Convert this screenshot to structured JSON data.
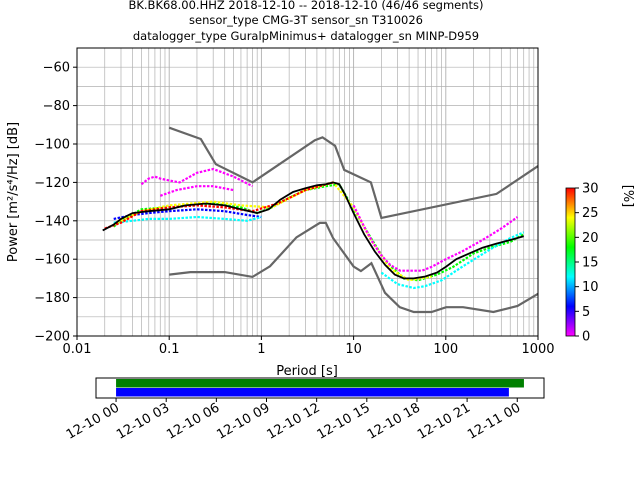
{
  "header": {
    "title_line1": "BK.BK68.00.HHZ   2018-12-10 -- 2018-12-10  (46/46 segments)",
    "title_line2": "sensor_type CMG-3T sensor_sn T310026",
    "title_line3": "datalogger_type GuralpMinimus+ datalogger_sn MINP-D959"
  },
  "chart_data": [
    {
      "type": "heatmap",
      "xlabel": "Period [s]",
      "ylabel": "Power [m²/s⁴/Hz] [dB]",
      "x_scale": "log",
      "xlim": [
        0.01,
        1000
      ],
      "ylim": [
        -200,
        -50
      ],
      "x_ticks": [
        "0.01",
        "0.1",
        "1",
        "10",
        "100",
        "1000"
      ],
      "y_ticks": [
        "-60",
        "-80",
        "-100",
        "-120",
        "-140",
        "-160",
        "-180",
        "-200"
      ],
      "grid": true,
      "colorbar": {
        "label": "[%]",
        "range": [
          0,
          30
        ],
        "ticks": [
          "0",
          "5",
          "10",
          "15",
          "20",
          "25",
          "30"
        ],
        "colormap": [
          "#ff00ff",
          "#0000ff",
          "#00ffff",
          "#00ff00",
          "#ffff00",
          "#ff0000"
        ]
      },
      "model_color": "#666666",
      "mode_color": "#000000",
      "high_noise_model": {
        "x": [
          0.1,
          0.22,
          0.32,
          0.8,
          3.8,
          4.6,
          6.3,
          7.9,
          15.4,
          20,
          354.8,
          1000
        ],
        "y": [
          -91.5,
          -97.4,
          -110.5,
          -120,
          -98,
          -96.5,
          -101,
          -113.5,
          -120,
          -138.5,
          -126,
          -111.5
        ]
      },
      "low_noise_model": {
        "x": [
          0.1,
          0.17,
          0.4,
          0.8,
          1.24,
          2.4,
          4.3,
          5,
          6,
          10,
          12,
          15.6,
          21.9,
          31.6,
          45,
          70,
          101,
          154,
          328,
          600,
          1000
        ],
        "y": [
          -168,
          -166.7,
          -166.7,
          -169.2,
          -163.7,
          -148.6,
          -141.1,
          -141.1,
          -149,
          -163.8,
          -166.2,
          -162.1,
          -177.5,
          -185,
          -187.5,
          -187.5,
          -185,
          -185,
          -187.5,
          -184.4,
          -178
        ]
      },
      "mode_curve": {
        "x": [
          0.019,
          0.025,
          0.03,
          0.04,
          0.06,
          0.1,
          0.15,
          0.25,
          0.4,
          0.6,
          0.9,
          1.2,
          1.6,
          2.2,
          3,
          4,
          5,
          6,
          7,
          8,
          10,
          13,
          17,
          22,
          28,
          35,
          45,
          60,
          80,
          100,
          130,
          180,
          250,
          350,
          500,
          700
        ],
        "y": [
          -145,
          -142,
          -139,
          -136,
          -135,
          -134,
          -132,
          -131,
          -132,
          -134,
          -136,
          -134,
          -129,
          -125,
          -123,
          -121.5,
          -121,
          -120,
          -121,
          -126,
          -136,
          -147,
          -156,
          -163,
          -168,
          -170,
          -170,
          -169,
          -167,
          -164,
          -160,
          -157,
          -154,
          -152,
          -150,
          -148
        ]
      },
      "psd_band_curves": [
        {
          "color": "#ff00ff",
          "x": [
            0.05,
            0.06,
            0.07,
            0.08,
            0.1,
            0.13,
            0.2,
            0.3,
            0.5,
            0.8
          ],
          "y": [
            -121,
            -118,
            -117,
            -118,
            -119,
            -120,
            -115,
            -113,
            -117,
            -122
          ]
        },
        {
          "color": "#ff00ff",
          "x": [
            0.08,
            0.12,
            0.2,
            0.3,
            0.5
          ],
          "y": [
            -127,
            -124,
            -122,
            -122,
            -124
          ]
        },
        {
          "color": "#0000ff",
          "x": [
            0.025,
            0.04,
            0.06,
            0.1,
            0.2,
            0.4,
            0.7,
            1.0
          ],
          "y": [
            -139,
            -137,
            -136,
            -135,
            -134,
            -135,
            -137,
            -138
          ]
        },
        {
          "color": "#00ffff",
          "x": [
            0.025,
            0.04,
            0.06,
            0.1,
            0.2,
            0.4,
            0.7,
            1.0
          ],
          "y": [
            -141,
            -140,
            -139,
            -139,
            -138,
            -139,
            -140,
            -138
          ]
        },
        {
          "color": "#00ff00",
          "x": [
            0.025,
            0.03,
            0.05,
            0.1,
            0.3,
            0.6,
            0.9,
            1.3,
            2,
            3,
            5,
            7,
            10,
            15,
            22,
            35,
            50,
            80,
            120,
            200,
            300,
            500,
            700
          ],
          "y": [
            -143,
            -140,
            -134,
            -133,
            -131,
            -133,
            -136,
            -133,
            -128,
            -124,
            -122,
            -121,
            -134,
            -148,
            -161,
            -170,
            -171,
            -168,
            -164,
            -157,
            -154,
            -151,
            -147
          ]
        },
        {
          "color": "#ffff00",
          "x": [
            0.025,
            0.05,
            0.1,
            0.3,
            0.6,
            1.3,
            3,
            6,
            10,
            15,
            25,
            40,
            70
          ],
          "y": [
            -142,
            -135,
            -132,
            -130,
            -132,
            -133,
            -124,
            -120,
            -133,
            -149,
            -165,
            -171,
            -169
          ]
        },
        {
          "color": "#ff0000",
          "x": [
            0.02,
            0.03,
            0.05,
            0.1,
            0.2,
            0.4,
            0.8,
            1.5,
            3,
            6
          ],
          "y": [
            -144,
            -141,
            -135,
            -133,
            -132,
            -133,
            -135,
            -131,
            -124,
            -120
          ]
        },
        {
          "color": "#ff00ff",
          "x": [
            10,
            13,
            16,
            20,
            25,
            32,
            40,
            55,
            70,
            100,
            150,
            250,
            400,
            600
          ],
          "y": [
            -132,
            -143,
            -151,
            -158,
            -163,
            -166,
            -166,
            -166,
            -164,
            -160,
            -156,
            -150,
            -144,
            -138
          ]
        },
        {
          "color": "#00ffff",
          "x": [
            20,
            30,
            45,
            60,
            90,
            150,
            300,
            500,
            700
          ],
          "y": [
            -167,
            -173,
            -175,
            -174,
            -171,
            -164,
            -155,
            -149,
            -146
          ]
        }
      ]
    },
    {
      "type": "timeline",
      "x_range": [
        "12-10 00",
        "12-11 00"
      ],
      "x_ticks": [
        "12-10 00",
        "12-10 03",
        "12-10 06",
        "12-10 09",
        "12-10 12",
        "12-10 15",
        "12-10 18",
        "12-10 21",
        "12-11 00"
      ],
      "tick_hours": [
        0,
        3,
        6,
        9,
        12,
        15,
        18,
        21,
        24
      ],
      "bars": [
        {
          "color": "#008000",
          "start_hour": 0.0,
          "end_hour": 24.4
        },
        {
          "color": "#0000ff",
          "start_hour": 0.0,
          "end_hour": 23.5
        }
      ],
      "axis_hour_range": [
        -1.2,
        25.6
      ]
    }
  ]
}
